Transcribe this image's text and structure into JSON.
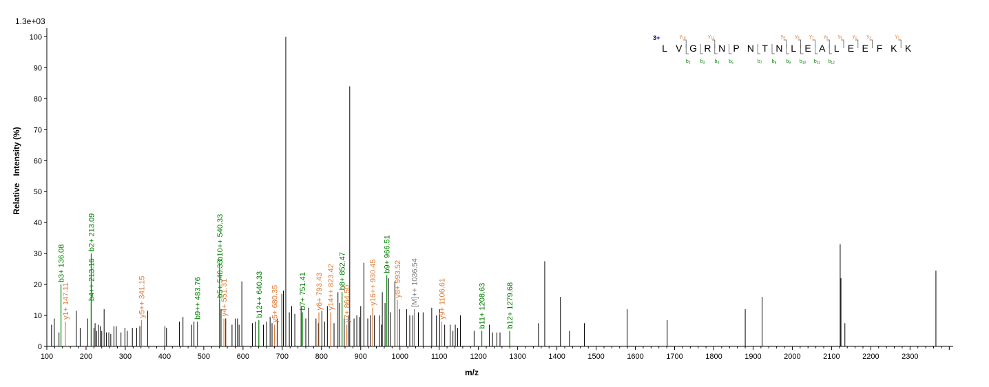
{
  "chart_data": {
    "type": "bar",
    "scale_label": "1.3e+03",
    "xlabel": "m/z",
    "ylabel": "Relative   Intensity (%)",
    "xlim": [
      100,
      2410
    ],
    "ylim": [
      0,
      101
    ],
    "xticks": [
      100,
      200,
      300,
      400,
      500,
      600,
      700,
      800,
      900,
      1000,
      1100,
      1200,
      1300,
      1400,
      1500,
      1600,
      1700,
      1800,
      1900,
      2000,
      2100,
      2200,
      2300
    ],
    "yticks": [
      0,
      10,
      20,
      30,
      40,
      50,
      60,
      70,
      80,
      90,
      100
    ],
    "colors": {
      "unassigned": "#000000",
      "b_ion": "#008000",
      "y_ion": "#e07b39",
      "precursor": "#808080",
      "charge": "#00008b"
    },
    "peaks": [
      {
        "mz": 112,
        "i": 7
      },
      {
        "mz": 119,
        "i": 9
      },
      {
        "mz": 131,
        "i": 4.5
      },
      {
        "mz": 175,
        "i": 11.5
      },
      {
        "mz": 185,
        "i": 6
      },
      {
        "mz": 204,
        "i": 9
      },
      {
        "mz": 220,
        "i": 6
      },
      {
        "mz": 223,
        "i": 7.5
      },
      {
        "mz": 227,
        "i": 5
      },
      {
        "mz": 232,
        "i": 7
      },
      {
        "mz": 236,
        "i": 6.5
      },
      {
        "mz": 240,
        "i": 5
      },
      {
        "mz": 246,
        "i": 12
      },
      {
        "mz": 252,
        "i": 4.5
      },
      {
        "mz": 258,
        "i": 4.5
      },
      {
        "mz": 263,
        "i": 4
      },
      {
        "mz": 271,
        "i": 6.5
      },
      {
        "mz": 277,
        "i": 6.5
      },
      {
        "mz": 289,
        "i": 4.5
      },
      {
        "mz": 299,
        "i": 6
      },
      {
        "mz": 305,
        "i": 5
      },
      {
        "mz": 318,
        "i": 6
      },
      {
        "mz": 329,
        "i": 6
      },
      {
        "mz": 337,
        "i": 6.5
      },
      {
        "mz": 357,
        "i": 11.5
      },
      {
        "mz": 401,
        "i": 6.5
      },
      {
        "mz": 405,
        "i": 6
      },
      {
        "mz": 438,
        "i": 8
      },
      {
        "mz": 447,
        "i": 9.5
      },
      {
        "mz": 469,
        "i": 7
      },
      {
        "mz": 475,
        "i": 8
      },
      {
        "mz": 544,
        "i": 12
      },
      {
        "mz": 556,
        "i": 9
      },
      {
        "mz": 572,
        "i": 7
      },
      {
        "mz": 580,
        "i": 9
      },
      {
        "mz": 586,
        "i": 9
      },
      {
        "mz": 590,
        "i": 7
      },
      {
        "mz": 597,
        "i": 21
      },
      {
        "mz": 624,
        "i": 7.5
      },
      {
        "mz": 631,
        "i": 8
      },
      {
        "mz": 652,
        "i": 7
      },
      {
        "mz": 660,
        "i": 8
      },
      {
        "mz": 669,
        "i": 9.5
      },
      {
        "mz": 674,
        "i": 7.5
      },
      {
        "mz": 687,
        "i": 9
      },
      {
        "mz": 699,
        "i": 17
      },
      {
        "mz": 703,
        "i": 18
      },
      {
        "mz": 709,
        "i": 100
      },
      {
        "mz": 718,
        "i": 11
      },
      {
        "mz": 724,
        "i": 13
      },
      {
        "mz": 732,
        "i": 10.5
      },
      {
        "mz": 748,
        "i": 13
      },
      {
        "mz": 760,
        "i": 9
      },
      {
        "mz": 767,
        "i": 12.5
      },
      {
        "mz": 786,
        "i": 9
      },
      {
        "mz": 792,
        "i": 7.5
      },
      {
        "mz": 801,
        "i": 11.5
      },
      {
        "mz": 808,
        "i": 8
      },
      {
        "mz": 815,
        "i": 13
      },
      {
        "mz": 832,
        "i": 7.5
      },
      {
        "mz": 842,
        "i": 17.5
      },
      {
        "mz": 846,
        "i": 14
      },
      {
        "mz": 858,
        "i": 9
      },
      {
        "mz": 868,
        "i": 10
      },
      {
        "mz": 872,
        "i": 84
      },
      {
        "mz": 883,
        "i": 9
      },
      {
        "mz": 890,
        "i": 10
      },
      {
        "mz": 896,
        "i": 9.5
      },
      {
        "mz": 900,
        "i": 13
      },
      {
        "mz": 908,
        "i": 27
      },
      {
        "mz": 918,
        "i": 9
      },
      {
        "mz": 925,
        "i": 10
      },
      {
        "mz": 935,
        "i": 10
      },
      {
        "mz": 948,
        "i": 10
      },
      {
        "mz": 953,
        "i": 7
      },
      {
        "mz": 955,
        "i": 17.5
      },
      {
        "mz": 962,
        "i": 14
      },
      {
        "mz": 971,
        "i": 22
      },
      {
        "mz": 975,
        "i": 11
      },
      {
        "mz": 987,
        "i": 21
      },
      {
        "mz": 999,
        "i": 12
      },
      {
        "mz": 1017,
        "i": 12
      },
      {
        "mz": 1025,
        "i": 10
      },
      {
        "mz": 1033,
        "i": 10
      },
      {
        "mz": 1047,
        "i": 11
      },
      {
        "mz": 1059,
        "i": 11
      },
      {
        "mz": 1081,
        "i": 12.5
      },
      {
        "mz": 1093,
        "i": 10
      },
      {
        "mz": 1101,
        "i": 12
      },
      {
        "mz": 1114,
        "i": 7
      },
      {
        "mz": 1128,
        "i": 7
      },
      {
        "mz": 1135,
        "i": 5
      },
      {
        "mz": 1141,
        "i": 7
      },
      {
        "mz": 1147,
        "i": 6
      },
      {
        "mz": 1154,
        "i": 10
      },
      {
        "mz": 1189,
        "i": 5
      },
      {
        "mz": 1228,
        "i": 7
      },
      {
        "mz": 1236,
        "i": 4.5
      },
      {
        "mz": 1247,
        "i": 4.5
      },
      {
        "mz": 1255,
        "i": 4.5
      },
      {
        "mz": 1353,
        "i": 7.5
      },
      {
        "mz": 1369,
        "i": 27.5
      },
      {
        "mz": 1409,
        "i": 16
      },
      {
        "mz": 1432,
        "i": 5
      },
      {
        "mz": 1470,
        "i": 7.5
      },
      {
        "mz": 1579,
        "i": 12
      },
      {
        "mz": 1681,
        "i": 8.5
      },
      {
        "mz": 1880,
        "i": 12
      },
      {
        "mz": 1923,
        "i": 16
      },
      {
        "mz": 2122,
        "i": 33
      },
      {
        "mz": 2124,
        "i": 22
      },
      {
        "mz": 2134,
        "i": 7.5
      },
      {
        "mz": 2366,
        "i": 24.5
      }
    ],
    "annotations": [
      {
        "mz": 136.08,
        "i": 20,
        "label": "b3+ 136.08",
        "ion": "b"
      },
      {
        "mz": 147.11,
        "i": 8,
        "label": "y1+ 147.11",
        "ion": "y"
      },
      {
        "mz": 213.09,
        "i": 30,
        "label": "b2+ 213.09",
        "ion": "b"
      },
      {
        "mz": 213.16,
        "i": 14,
        "label": "b4++ 213.16",
        "ion": "b"
      },
      {
        "mz": 341.15,
        "i": 8.5,
        "label": "y5++ 341.15",
        "ion": "y"
      },
      {
        "mz": 483.76,
        "i": 8,
        "label": "b9++ 483.76",
        "ion": "b"
      },
      {
        "mz": 540.33,
        "i": 27,
        "label": "b10++ 540.33",
        "ion": "b"
      },
      {
        "mz": 540.33,
        "i": 15,
        "label": "b5+ 540.33",
        "ion": "b"
      },
      {
        "mz": 551.31,
        "i": 9,
        "label": "y4+ 551.31",
        "ion": "y"
      },
      {
        "mz": 640.33,
        "i": 8.5,
        "label": "b12++ 640.33",
        "ion": "b"
      },
      {
        "mz": 680.35,
        "i": 7,
        "label": "y5+ 680.35",
        "ion": "y"
      },
      {
        "mz": 751.41,
        "i": 11,
        "label": "b7+ 751.41",
        "ion": "b"
      },
      {
        "mz": 793.43,
        "i": 11,
        "label": "y6+ 793.43",
        "ion": "y"
      },
      {
        "mz": 823.42,
        "i": 11,
        "label": "y14++ 823.42",
        "ion": "y"
      },
      {
        "mz": 852.47,
        "i": 17.5,
        "label": "b8+ 852.47",
        "ion": "b"
      },
      {
        "mz": 864.5,
        "i": 7,
        "label": "y7+ 864.50",
        "ion": "y"
      },
      {
        "mz": 930.45,
        "i": 12.5,
        "label": "y16++ 930.45",
        "ion": "y"
      },
      {
        "mz": 966.51,
        "i": 23,
        "label": "b9+ 966.51",
        "ion": "b"
      },
      {
        "mz": 993.52,
        "i": 15,
        "label": "y8+ 993.52",
        "ion": "y"
      },
      {
        "mz": 1036.54,
        "i": 12,
        "label": "[M]++ 1036.54",
        "ion": "precursor"
      },
      {
        "mz": 1106.61,
        "i": 8,
        "label": "y9+ 1106.61",
        "ion": "y"
      },
      {
        "mz": 1208.63,
        "i": 5,
        "label": "b11+ 1208.63",
        "ion": "b"
      },
      {
        "mz": 1279.68,
        "i": 5,
        "label": "b12+ 1279.68",
        "ion": "b"
      }
    ],
    "sequence": {
      "charge": "3+",
      "residues": [
        "L",
        "V",
        "G",
        "R",
        "N",
        "P",
        "N",
        "T",
        "N",
        "L",
        "E",
        "A",
        "L",
        "E",
        "E",
        "F",
        "K",
        "K"
      ],
      "y_ions": [
        {
          "after": 2,
          "main": "y",
          "sub": "16"
        },
        {
          "after": 4,
          "main": "y",
          "sub": "14"
        },
        {
          "after": 9,
          "main": "y",
          "sub": "9"
        },
        {
          "after": 10,
          "main": "y",
          "sub": "8"
        },
        {
          "after": 11,
          "main": "y",
          "sub": "7"
        },
        {
          "after": 12,
          "main": "y",
          "sub": "6"
        },
        {
          "after": 13,
          "main": "y",
          "sub": "5"
        },
        {
          "after": 14,
          "main": "y",
          "sub": "4"
        },
        {
          "after": 15,
          "main": "y",
          "sub": "3"
        },
        {
          "after": 17,
          "main": "y",
          "sub": "1"
        }
      ],
      "b_ions": [
        {
          "after": 2,
          "main": "b",
          "sub": "2"
        },
        {
          "after": 3,
          "main": "b",
          "sub": "3"
        },
        {
          "after": 4,
          "main": "b",
          "sub": "4"
        },
        {
          "after": 5,
          "main": "b",
          "sub": "5"
        },
        {
          "after": 7,
          "main": "b",
          "sub": "7"
        },
        {
          "after": 8,
          "main": "b",
          "sub": "8"
        },
        {
          "after": 9,
          "main": "b",
          "sub": "9"
        },
        {
          "after": 10,
          "main": "b",
          "sub": "10"
        },
        {
          "after": 11,
          "main": "b",
          "sub": "11"
        },
        {
          "after": 12,
          "main": "b",
          "sub": "12"
        }
      ]
    }
  }
}
